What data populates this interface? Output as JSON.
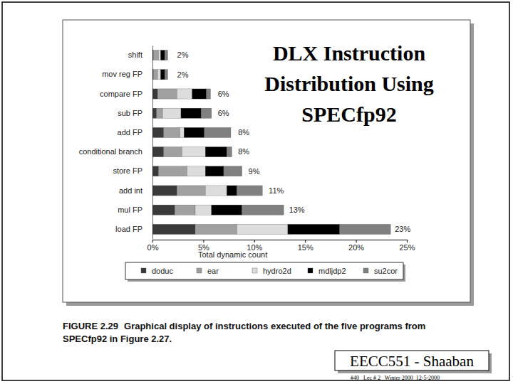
{
  "chart_data": {
    "type": "bar",
    "orientation": "horizontal",
    "stacked": true,
    "title": "DLX Instruction Distribution Using SPECfp92",
    "x_label": "Total dynamic count",
    "categories": [
      "shift",
      "mov reg FP",
      "compare FP",
      "sub FP",
      "add FP",
      "conditional branch",
      "store FP",
      "add int",
      "mul FP",
      "load FP"
    ],
    "series": [
      {
        "name": "doduc",
        "color": "#3a3a3a",
        "values": [
          0.1,
          0.1,
          0.5,
          0.4,
          1.1,
          1.1,
          0.6,
          2.4,
          2.2,
          4.2
        ]
      },
      {
        "name": "ear",
        "color": "#a0a0a0",
        "values": [
          0.5,
          0.4,
          1.9,
          0.6,
          1.6,
          1.8,
          2.8,
          2.8,
          2.0,
          4.1
        ]
      },
      {
        "name": "hydro2d",
        "color": "#dcdcdc",
        "values": [
          0.2,
          0.3,
          1.5,
          1.8,
          0.4,
          2.3,
          1.8,
          2.1,
          1.6,
          5.0
        ]
      },
      {
        "name": "mdljdp2",
        "color": "#000000",
        "values": [
          0.4,
          0.4,
          1.4,
          2.0,
          2.0,
          2.1,
          1.8,
          1.0,
          3.0,
          5.1
        ]
      },
      {
        "name": "su2cor",
        "color": "#808080",
        "values": [
          0.3,
          0.3,
          0.4,
          1.0,
          2.6,
          0.5,
          1.8,
          2.5,
          4.1,
          5.0
        ]
      }
    ],
    "totals": [
      2,
      2,
      6,
      6,
      8,
      8,
      9,
      11,
      13,
      23
    ],
    "total_labels": [
      "2%",
      "2%",
      "6%",
      "6%",
      "8%",
      "8%",
      "9%",
      "11%",
      "13%",
      "23%"
    ],
    "xlim": [
      0,
      25
    ],
    "xticks": [
      {
        "value": 0,
        "label": "0%"
      },
      {
        "value": 5,
        "label": "5%"
      },
      {
        "value": 10,
        "label": "10%"
      },
      {
        "value": 15,
        "label": "15%"
      },
      {
        "value": 20,
        "label": "20%"
      },
      {
        "value": 25,
        "label": "25%"
      }
    ],
    "grid": false,
    "legend": "bottom"
  },
  "slide": {
    "caption_label": "FIGURE 2.29",
    "caption_lines": [
      "Graphical display of instructions executed of the five programs from",
      "SPECfp92 in Figure 2.27."
    ],
    "footer": "EECC551 - Shaaban",
    "footer_note": "#40   Lec # 2   Winter 2000  12-5-2000"
  }
}
